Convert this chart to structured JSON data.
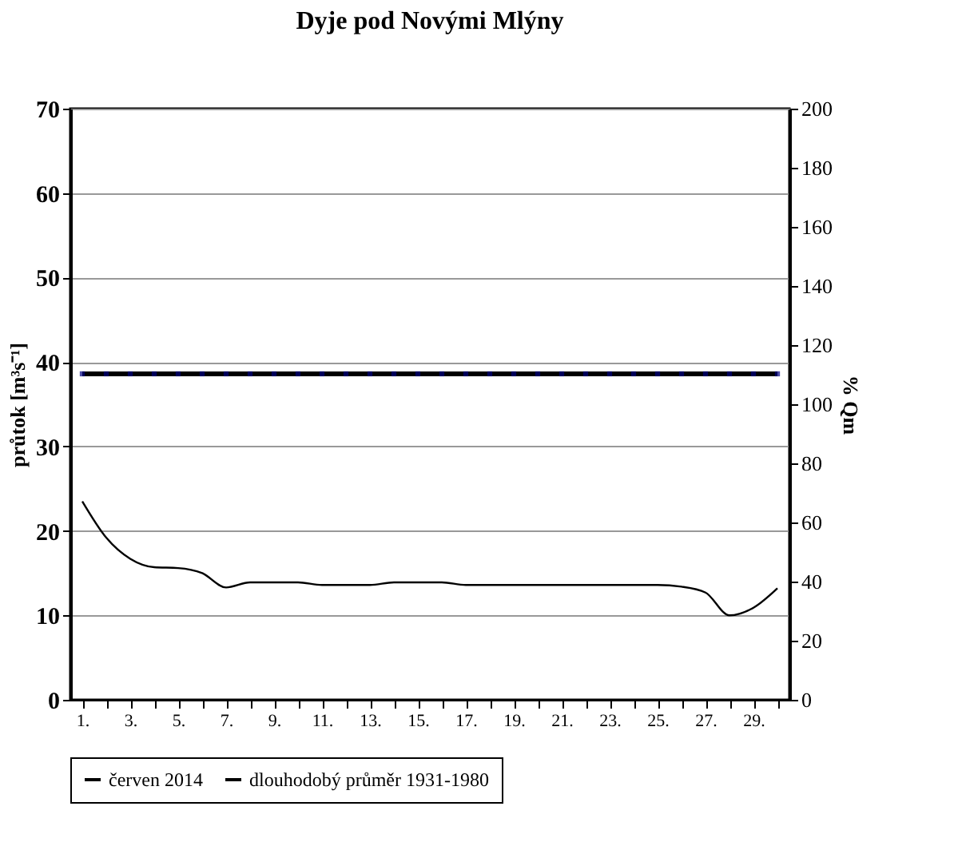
{
  "chart_data": {
    "type": "line",
    "title": "Dyje pod Novými Mlýny",
    "ylabel": "průtok [m³s⁻¹]",
    "y2label": "% Qm",
    "categories": [
      "1.",
      null,
      "3.",
      null,
      "5.",
      null,
      "7.",
      null,
      "9.",
      null,
      "11.",
      null,
      "13.",
      null,
      "15.",
      null,
      "17.",
      null,
      "19.",
      null,
      "21.",
      null,
      "23.",
      null,
      "25.",
      null,
      "27.",
      null,
      "29.",
      null
    ],
    "series": [
      {
        "name": "červen 2014",
        "color": "#000000",
        "marker": "none",
        "values": [
          23.5,
          19.2,
          16.7,
          15.7,
          15.6,
          15.0,
          13.3,
          13.9,
          13.9,
          13.9,
          13.6,
          13.6,
          13.6,
          13.9,
          13.9,
          13.9,
          13.6,
          13.6,
          13.6,
          13.6,
          13.6,
          13.6,
          13.6,
          13.6,
          13.6,
          13.4,
          12.7,
          10.0,
          10.9,
          13.2
        ]
      },
      {
        "name": "dlouhodobý průměr 1931-1980",
        "color": "#000000",
        "marker": "square",
        "values": [
          38.6,
          38.6,
          38.6,
          38.6,
          38.6,
          38.6,
          38.6,
          38.6,
          38.6,
          38.6,
          38.6,
          38.6,
          38.6,
          38.6,
          38.6,
          38.6,
          38.6,
          38.6,
          38.6,
          38.6,
          38.6,
          38.6,
          38.6,
          38.6,
          38.6,
          38.6,
          38.6,
          38.6,
          38.6,
          38.6
        ]
      }
    ],
    "ylim": [
      0,
      70
    ],
    "yticks": [
      0,
      10,
      20,
      30,
      40,
      50,
      60,
      70
    ],
    "y2lim": [
      0,
      200
    ],
    "y2ticks": [
      0,
      20,
      40,
      60,
      80,
      100,
      120,
      140,
      160,
      180,
      200
    ],
    "grid": "y",
    "legend": "bottom",
    "line_style": "solid"
  }
}
